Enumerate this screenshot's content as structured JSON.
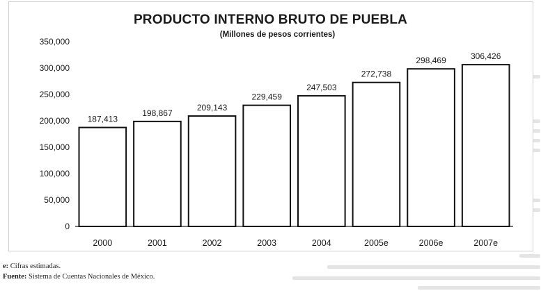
{
  "chart_data": {
    "type": "bar",
    "title": "PRODUCTO INTERNO BRUTO DE PUEBLA",
    "subtitle": "(Millones de pesos corrientes)",
    "categories": [
      "2000",
      "2001",
      "2002",
      "2003",
      "2004",
      "2005e",
      "2006e",
      "2007e"
    ],
    "values": [
      187413,
      198867,
      209143,
      229459,
      247503,
      272738,
      298469,
      306426
    ],
    "value_labels": [
      "187,413",
      "198,867",
      "209,143",
      "229,459",
      "247,503",
      "272,738",
      "298,469",
      "306,426"
    ],
    "ylim": [
      0,
      350000
    ],
    "yticks": [
      0,
      50000,
      100000,
      150000,
      200000,
      250000,
      300000,
      350000
    ],
    "ytick_labels": [
      "0",
      "50,000",
      "100,000",
      "150,000",
      "200,000",
      "250,000",
      "300,000",
      "350,000"
    ],
    "xlabel": "",
    "ylabel": "",
    "grid": false,
    "bar_fill": "#ffffff",
    "bar_stroke": "#111111"
  },
  "notes": {
    "estimate_label": "e:",
    "estimate_text": "Cifras estimadas.",
    "source_label": "Fuente:",
    "source_text": "Sistema de Cuentas Nacionales de México."
  }
}
